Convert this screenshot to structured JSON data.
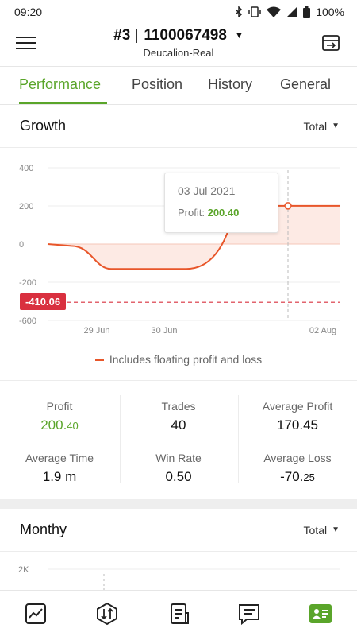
{
  "status_bar": {
    "time": "09:20",
    "battery": "100%"
  },
  "header": {
    "account_number": "#3",
    "account_id": "1100067498",
    "account_name": "Deucalion-Real"
  },
  "tabs": [
    {
      "label": "Performance",
      "active": true
    },
    {
      "label": "Position",
      "active": false
    },
    {
      "label": "History",
      "active": false
    },
    {
      "label": "General",
      "active": false
    }
  ],
  "growth": {
    "title": "Growth",
    "filter": "Total",
    "tooltip": {
      "date": "03 Jul 2021",
      "label": "Profit:",
      "value": "200.40"
    },
    "threshold_label": "-410.06",
    "legend": "Includes floating profit and loss"
  },
  "chart_data": {
    "type": "area",
    "title": "Growth",
    "y_ticks": [
      "400",
      "200",
      "0",
      "-200",
      "-600"
    ],
    "x_ticks": [
      "29 Jun",
      "30 Jun",
      "02 Aug"
    ],
    "ylim": [
      -600,
      400
    ],
    "threshold": -410.06,
    "series": [
      {
        "x": [
          "",
          "29 Jun",
          "",
          "30 Jun",
          "",
          "03 Jul 2021",
          "02 Aug"
        ],
        "values": [
          0,
          -10,
          -130,
          -130,
          -120,
          200.4,
          200.4
        ]
      }
    ],
    "highlight": {
      "x": "03 Jul 2021",
      "value": 200.4
    },
    "colors": {
      "line": "#e8562a",
      "fill": "#fdeae4",
      "threshold": "#d9303f"
    }
  },
  "stats": {
    "profit": {
      "label": "Profit",
      "int": "200.",
      "dec": "40"
    },
    "trades": {
      "label": "Trades",
      "value": "40"
    },
    "avg_profit": {
      "label": "Average Profit",
      "value": "170.45"
    },
    "avg_time": {
      "label": "Average Time",
      "value": "1.9 m"
    },
    "win_rate": {
      "label": "Win Rate",
      "value": "0.50"
    },
    "avg_loss": {
      "label": "Average Loss",
      "int": "-70.",
      "dec": "25"
    }
  },
  "monthly": {
    "title": "Monthy",
    "filter": "Total",
    "y_tick": "2K"
  },
  "nav": [
    {
      "icon": "chart-icon"
    },
    {
      "icon": "trade-icon"
    },
    {
      "icon": "document-icon"
    },
    {
      "icon": "message-icon"
    },
    {
      "icon": "account-card-icon"
    }
  ],
  "accent": "#5aa52a"
}
